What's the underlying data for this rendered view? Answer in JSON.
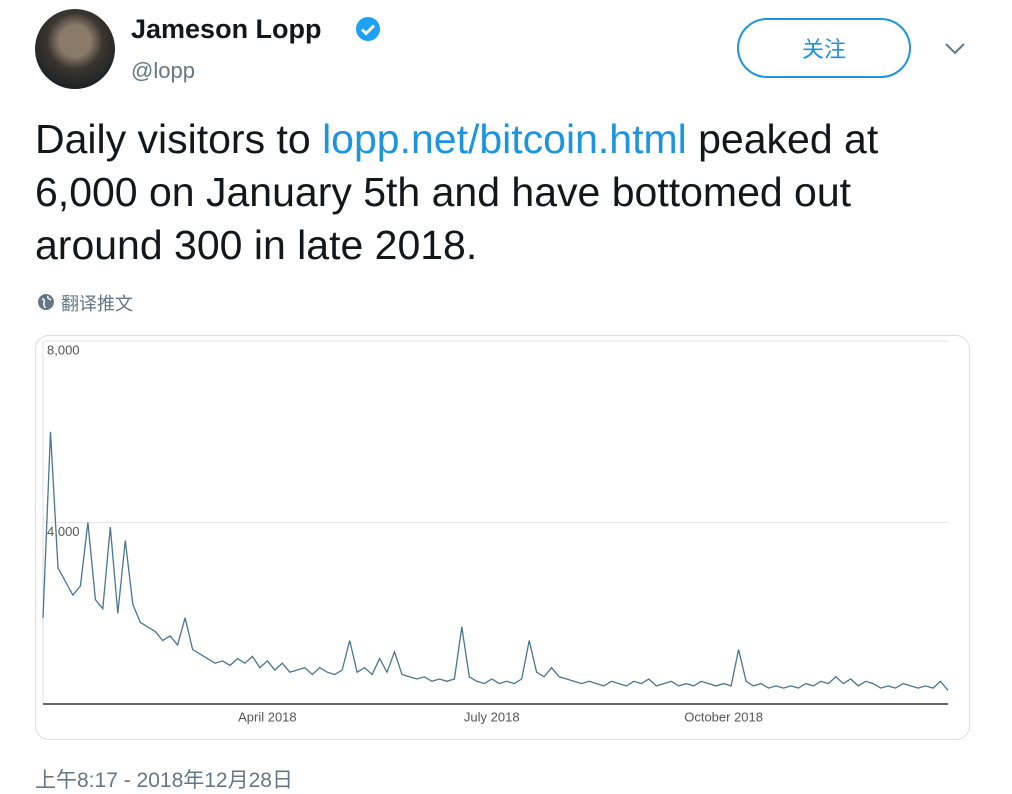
{
  "header": {
    "name": "Jameson Lopp",
    "handle": "@lopp",
    "follow": "关注"
  },
  "tweet": {
    "text_before": "Daily visitors to ",
    "link": "lopp.net/bitcoin.html",
    "text_after": " peaked at 6,000 on January 5th and have bottomed out around 300 in late 2018.",
    "translate": "翻译推文"
  },
  "chart_data": {
    "type": "line",
    "color": "#4a7591",
    "categories": [
      null,
      null,
      null,
      null,
      null,
      null,
      null,
      null,
      null,
      null,
      null,
      null,
      null,
      null,
      null,
      null,
      null,
      null,
      null,
      null,
      null,
      null,
      null,
      null,
      null,
      null,
      null,
      null,
      null,
      null,
      "April 2018",
      null,
      null,
      null,
      null,
      null,
      null,
      null,
      null,
      null,
      null,
      null,
      null,
      null,
      null,
      null,
      null,
      null,
      null,
      null,
      null,
      null,
      null,
      null,
      null,
      null,
      null,
      null,
      null,
      null,
      "July 2018",
      null,
      null,
      null,
      null,
      null,
      null,
      null,
      null,
      null,
      null,
      null,
      null,
      null,
      null,
      null,
      null,
      null,
      null,
      null,
      null,
      null,
      null,
      null,
      null,
      null,
      null,
      null,
      null,
      null,
      null,
      "October 2018",
      null,
      null,
      null,
      null,
      null,
      null,
      null,
      null,
      null,
      null,
      null,
      null,
      null,
      null,
      null,
      null,
      null,
      null,
      null,
      null,
      null,
      null,
      null,
      null,
      null,
      null,
      null,
      null,
      null,
      null
    ],
    "values": [
      1900,
      6000,
      3000,
      2700,
      2400,
      2600,
      4000,
      2300,
      2100,
      3900,
      2000,
      3600,
      2200,
      1800,
      1700,
      1600,
      1400,
      1500,
      1300,
      1900,
      1200,
      1100,
      1000,
      900,
      950,
      850,
      1000,
      900,
      1050,
      800,
      950,
      750,
      900,
      700,
      750,
      800,
      650,
      800,
      700,
      650,
      750,
      1400,
      700,
      800,
      650,
      1000,
      700,
      1150,
      650,
      600,
      550,
      600,
      500,
      550,
      500,
      550,
      1700,
      600,
      500,
      450,
      550,
      450,
      500,
      450,
      550,
      1400,
      700,
      600,
      800,
      600,
      550,
      500,
      450,
      500,
      450,
      400,
      500,
      450,
      400,
      500,
      450,
      550,
      400,
      450,
      500,
      400,
      450,
      400,
      500,
      450,
      400,
      450,
      400,
      1200,
      500,
      400,
      450,
      350,
      400,
      350,
      400,
      350,
      450,
      400,
      500,
      450,
      600,
      450,
      550,
      400,
      500,
      450,
      350,
      400,
      350,
      450,
      400,
      350,
      400,
      350,
      500,
      300
    ],
    "ylim": [
      0,
      8000
    ],
    "yticks": [
      {
        "value": 4000,
        "label": "4,000"
      },
      {
        "value": 8000,
        "label": "8,000"
      }
    ],
    "grid": true
  },
  "footer": {
    "timestamp": "上午8:17 - 2018年12月28日"
  }
}
